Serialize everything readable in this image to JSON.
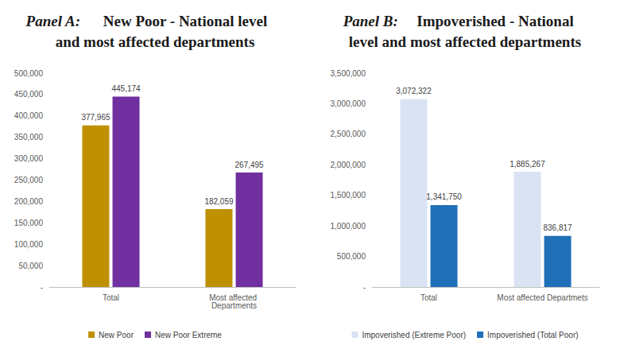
{
  "chart_data": [
    {
      "type": "bar",
      "title": "Panel A: New Poor - National level and most affected departments",
      "categories": [
        "Total",
        "Most affected Departments"
      ],
      "series": [
        {
          "name": "New Poor",
          "color": "#bf9000",
          "values": [
            377965,
            182059
          ],
          "value_labels": [
            "377,965",
            "182,059"
          ]
        },
        {
          "name": "New Poor Extreme",
          "color": "#7030a0",
          "values": [
            445174,
            267495
          ],
          "value_labels": [
            "445,174",
            "267,495"
          ]
        }
      ],
      "ylim": [
        0,
        500000
      ],
      "yticks": [
        {
          "value": 0,
          "label": "-"
        },
        {
          "value": 50000,
          "label": "50,000"
        },
        {
          "value": 100000,
          "label": "100,000"
        },
        {
          "value": 150000,
          "label": "150,000"
        },
        {
          "value": 200000,
          "label": "200,000"
        },
        {
          "value": 250000,
          "label": "250,000"
        },
        {
          "value": 300000,
          "label": "300,000"
        },
        {
          "value": 350000,
          "label": "350,000"
        },
        {
          "value": 400000,
          "label": "400,000"
        },
        {
          "value": 450000,
          "label": "450,000"
        },
        {
          "value": 500000,
          "label": "500,000"
        }
      ],
      "grid": false,
      "legend": "bottom",
      "data_labels": true
    },
    {
      "type": "bar",
      "title": "Panel B: Impoverished - National level and most affected departments",
      "categories": [
        "Total",
        "Most affected Departmets"
      ],
      "series": [
        {
          "name": "Impoverished (Extreme Poor)",
          "color": "#dae3f3",
          "values": [
            3072322,
            1885267
          ],
          "value_labels": [
            "3,072,322",
            "1,885,267"
          ]
        },
        {
          "name": "Impoverished (Total Poor)",
          "color": "#1f70b8",
          "values": [
            1341750,
            836817
          ],
          "value_labels": [
            "1,341,750",
            "836,817"
          ]
        }
      ],
      "ylim": [
        0,
        3500000
      ],
      "yticks": [
        {
          "value": 0,
          "label": "-"
        },
        {
          "value": 500000,
          "label": "500,000"
        },
        {
          "value": 1000000,
          "label": "1,000,000"
        },
        {
          "value": 1500000,
          "label": "1,500,000"
        },
        {
          "value": 2000000,
          "label": "2,000,000"
        },
        {
          "value": 2500000,
          "label": "2,500,000"
        },
        {
          "value": 3000000,
          "label": "3,000,000"
        },
        {
          "value": 3500000,
          "label": "3,500,000"
        }
      ],
      "grid": false,
      "legend": "bottom",
      "data_labels": true
    }
  ]
}
